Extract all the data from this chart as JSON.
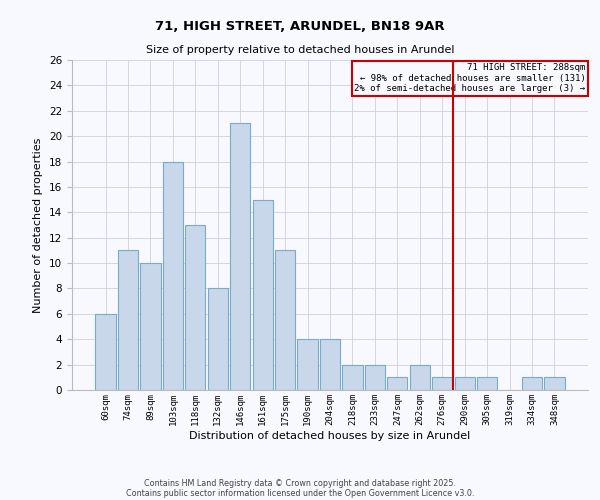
{
  "title": "71, HIGH STREET, ARUNDEL, BN18 9AR",
  "subtitle": "Size of property relative to detached houses in Arundel",
  "xlabel": "Distribution of detached houses by size in Arundel",
  "ylabel": "Number of detached properties",
  "bar_labels": [
    "60sqm",
    "74sqm",
    "89sqm",
    "103sqm",
    "118sqm",
    "132sqm",
    "146sqm",
    "161sqm",
    "175sqm",
    "190sqm",
    "204sqm",
    "218sqm",
    "233sqm",
    "247sqm",
    "262sqm",
    "276sqm",
    "290sqm",
    "305sqm",
    "319sqm",
    "334sqm",
    "348sqm"
  ],
  "bar_heights": [
    6,
    11,
    10,
    18,
    13,
    8,
    21,
    15,
    11,
    4,
    4,
    2,
    2,
    1,
    2,
    1,
    1,
    1,
    0,
    1,
    1
  ],
  "bar_color": "#c8d8ea",
  "bar_edge_color": "#7aaaca",
  "vline_color": "#cc0000",
  "annotation_title": "71 HIGH STREET: 288sqm",
  "annotation_line1": "← 98% of detached houses are smaller (131)",
  "annotation_line2": "2% of semi-detached houses are larger (3) →",
  "annotation_box_color": "#cc0000",
  "ylim": [
    0,
    26
  ],
  "yticks": [
    0,
    2,
    4,
    6,
    8,
    10,
    12,
    14,
    16,
    18,
    20,
    22,
    24,
    26
  ],
  "footer1": "Contains HM Land Registry data © Crown copyright and database right 2025.",
  "footer2": "Contains public sector information licensed under the Open Government Licence v3.0.",
  "bg_color": "#f8f8ff",
  "grid_color": "#d0d0d8"
}
